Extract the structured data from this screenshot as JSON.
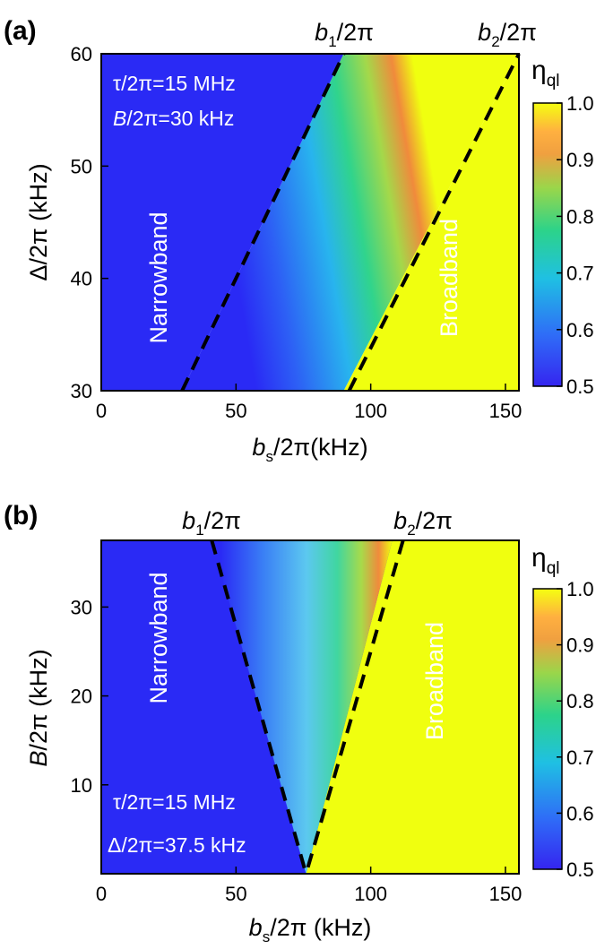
{
  "chart_data": [
    {
      "type": "heatmap",
      "panel_label": "(a)",
      "xlabel": "b_s/2π(kHz)",
      "ylabel": "Δ/2π (kHz)",
      "xlim": [
        0,
        155
      ],
      "ylim": [
        30,
        60
      ],
      "xticks": [
        0,
        50,
        100,
        150
      ],
      "yticks": [
        30,
        40,
        50,
        60
      ],
      "colorbar": {
        "label": "η_ql",
        "range": [
          0.5,
          1.0
        ],
        "ticks": [
          "0.5",
          "0.6",
          "0.7",
          "0.8",
          "0.9",
          "1.0"
        ]
      },
      "annotations": [
        "τ/2π=15 MHz",
        "B/2π=30 kHz"
      ],
      "regions": [
        "Narrowband",
        "Broadband"
      ],
      "boundary_labels": [
        "b_1/2π",
        "b_2/2π"
      ],
      "boundaries": [
        {
          "name": "b_1/2π",
          "points": [
            [
              30,
              30
            ],
            [
              90,
              60
            ]
          ]
        },
        {
          "name": "b_2/2π",
          "points": [
            [
              92,
              30
            ],
            [
              155,
              60
            ]
          ]
        }
      ],
      "ridge": [
        [
          88,
          30
        ],
        [
          153,
          60
        ]
      ]
    },
    {
      "type": "heatmap",
      "panel_label": "(b)",
      "xlabel": "b_s/2π (kHz)",
      "ylabel": "B/2π (kHz)",
      "xlim": [
        0,
        155
      ],
      "ylim": [
        0,
        37.5
      ],
      "xticks": [
        0,
        50,
        100,
        150
      ],
      "yticks": [
        10,
        20,
        30
      ],
      "colorbar": {
        "label": "η_ql",
        "range": [
          0.5,
          1.0
        ],
        "ticks": [
          "0.5",
          "0.6",
          "0.7",
          "0.8",
          "0.9",
          "1.0"
        ]
      },
      "annotations": [
        "τ/2π=15 MHz",
        "Δ/2π=37.5 kHz"
      ],
      "regions": [
        "Narrowband",
        "Broadband"
      ],
      "boundary_labels": [
        "b_1/2π",
        "b_2/2π"
      ],
      "boundaries": [
        {
          "name": "b_1/2π",
          "points": [
            [
              41,
              37.5
            ],
            [
              76,
              0
            ]
          ]
        },
        {
          "name": "b_2/2π",
          "points": [
            [
              112,
              37.5
            ],
            [
              76,
              0
            ]
          ]
        }
      ],
      "ridge": [
        [
          106,
          37.5
        ],
        [
          76,
          0
        ]
      ]
    }
  ]
}
